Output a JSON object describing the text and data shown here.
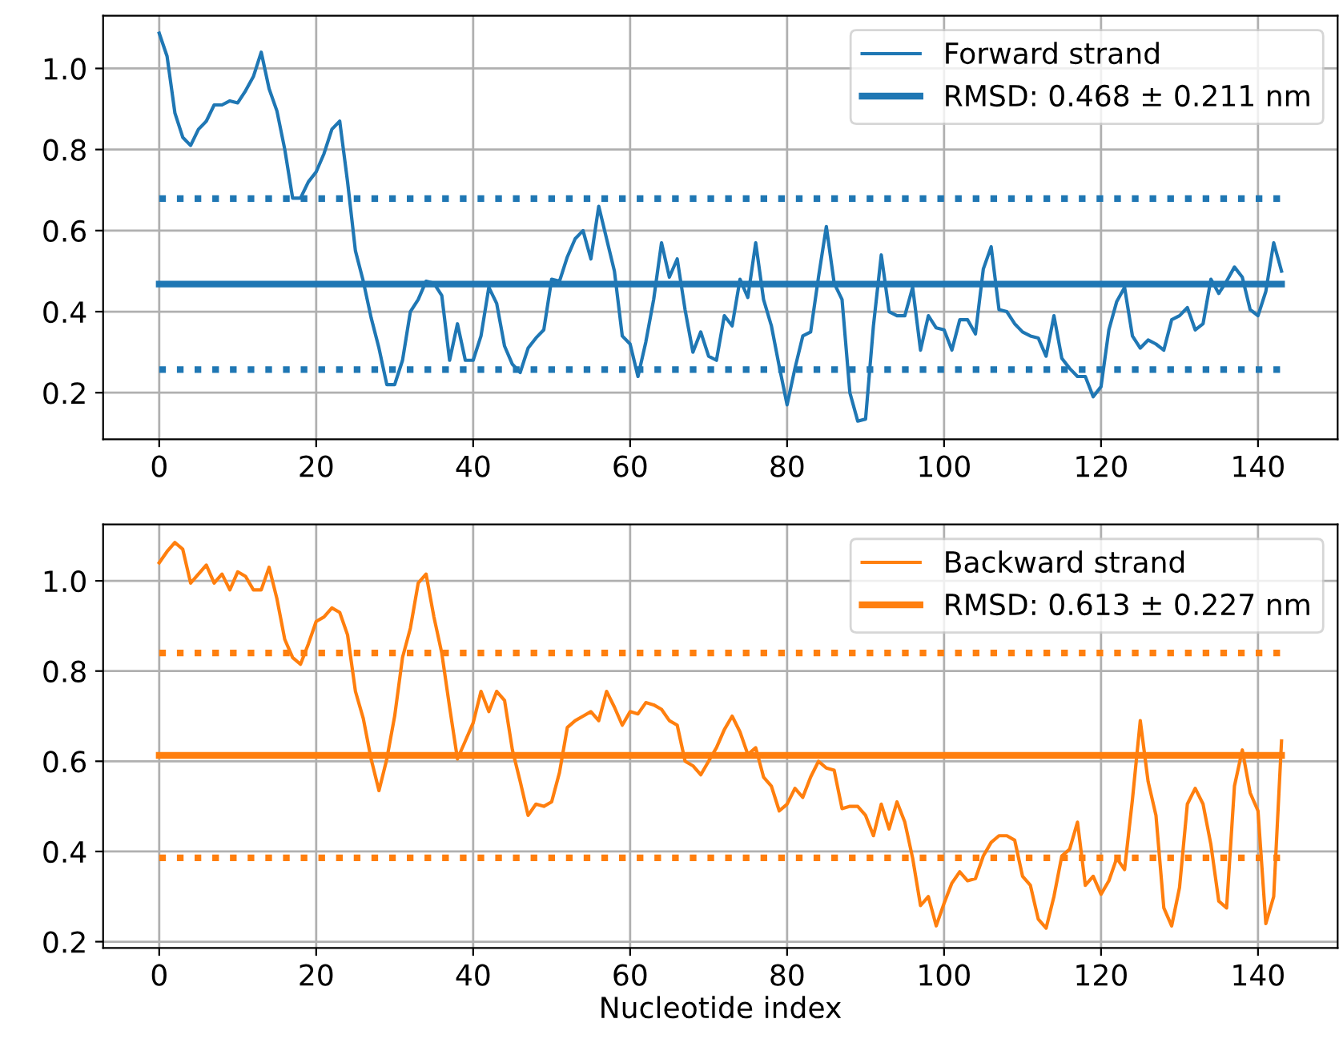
{
  "chart_data": [
    {
      "type": "line",
      "x": [
        0,
        1,
        2,
        3,
        4,
        5,
        6,
        7,
        8,
        9,
        10,
        11,
        12,
        13,
        14,
        15,
        16,
        17,
        18,
        19,
        20,
        21,
        22,
        23,
        24,
        25,
        26,
        27,
        28,
        29,
        30,
        31,
        32,
        33,
        34,
        35,
        36,
        37,
        38,
        39,
        40,
        41,
        42,
        43,
        44,
        45,
        46,
        47,
        48,
        49,
        50,
        51,
        52,
        53,
        54,
        55,
        56,
        57,
        58,
        59,
        60,
        61,
        62,
        63,
        64,
        65,
        66,
        67,
        68,
        69,
        70,
        71,
        72,
        73,
        74,
        75,
        76,
        77,
        78,
        79,
        80,
        81,
        82,
        83,
        84,
        85,
        86,
        87,
        88,
        89,
        90,
        91,
        92,
        93,
        94,
        95,
        96,
        97,
        98,
        99,
        100,
        101,
        102,
        103,
        104,
        105,
        106,
        107,
        108,
        109,
        110,
        111,
        112,
        113,
        114,
        115,
        116,
        117,
        118,
        119,
        120,
        121,
        122,
        123,
        124,
        125,
        126,
        127,
        128,
        129,
        130,
        131,
        132,
        133,
        134,
        135,
        136,
        137,
        138,
        139,
        140,
        141,
        142,
        143
      ],
      "series": [
        {
          "name": "Forward strand",
          "color": "#1f77b4",
          "values": [
            1.087,
            1.03,
            0.89,
            0.83,
            0.81,
            0.85,
            0.87,
            0.91,
            0.91,
            0.92,
            0.915,
            0.945,
            0.98,
            1.04,
            0.95,
            0.895,
            0.8,
            0.68,
            0.68,
            0.72,
            0.745,
            0.79,
            0.85,
            0.87,
            0.72,
            0.55,
            0.475,
            0.385,
            0.31,
            0.22,
            0.22,
            0.28,
            0.4,
            0.43,
            0.475,
            0.47,
            0.44,
            0.28,
            0.37,
            0.28,
            0.28,
            0.34,
            0.46,
            0.42,
            0.315,
            0.27,
            0.25,
            0.31,
            0.335,
            0.355,
            0.48,
            0.475,
            0.535,
            0.58,
            0.6,
            0.53,
            0.66,
            0.58,
            0.5,
            0.34,
            0.32,
            0.24,
            0.325,
            0.43,
            0.57,
            0.485,
            0.53,
            0.405,
            0.3,
            0.35,
            0.29,
            0.28,
            0.39,
            0.365,
            0.48,
            0.435,
            0.57,
            0.43,
            0.365,
            0.265,
            0.17,
            0.26,
            0.34,
            0.35,
            0.485,
            0.61,
            0.47,
            0.43,
            0.2,
            0.13,
            0.135,
            0.365,
            0.54,
            0.4,
            0.39,
            0.39,
            0.46,
            0.305,
            0.39,
            0.36,
            0.355,
            0.305,
            0.38,
            0.38,
            0.345,
            0.505,
            0.56,
            0.405,
            0.4,
            0.37,
            0.35,
            0.34,
            0.335,
            0.29,
            0.39,
            0.285,
            0.26,
            0.24,
            0.24,
            0.19,
            0.215,
            0.355,
            0.425,
            0.46,
            0.34,
            0.31,
            0.33,
            0.32,
            0.305,
            0.38,
            0.39,
            0.41,
            0.355,
            0.37,
            0.48,
            0.445,
            0.475,
            0.51,
            0.485,
            0.405,
            0.39,
            0.45,
            0.57,
            0.5
          ]
        }
      ],
      "ref_lines": [
        {
          "axis": "y",
          "value": 0.468,
          "label": "RMSD: 0.468 ± 0.211 nm",
          "color": "#1f77b4",
          "line_style": "solid"
        },
        {
          "axis": "y",
          "value": 0.679,
          "color": "#1f77b4",
          "line_style": "dotted"
        },
        {
          "axis": "y",
          "value": 0.257,
          "color": "#1f77b4",
          "line_style": "dotted"
        }
      ],
      "xlim": [
        -7.15,
        150.15
      ],
      "ylim": [
        0.085,
        1.13
      ],
      "xticks": [
        0,
        20,
        40,
        60,
        80,
        100,
        120,
        140
      ],
      "yticks": [
        0.2,
        0.4,
        0.6,
        0.8,
        {
          "value": 1,
          "label": "1.0"
        }
      ],
      "grid": true,
      "legend": "top right",
      "marker": "none",
      "line_style": "solid"
    },
    {
      "type": "line",
      "xlabel": "Nucleotide index",
      "x": [
        0,
        1,
        2,
        3,
        4,
        5,
        6,
        7,
        8,
        9,
        10,
        11,
        12,
        13,
        14,
        15,
        16,
        17,
        18,
        19,
        20,
        21,
        22,
        23,
        24,
        25,
        26,
        27,
        28,
        29,
        30,
        31,
        32,
        33,
        34,
        35,
        36,
        37,
        38,
        39,
        40,
        41,
        42,
        43,
        44,
        45,
        46,
        47,
        48,
        49,
        50,
        51,
        52,
        53,
        54,
        55,
        56,
        57,
        58,
        59,
        60,
        61,
        62,
        63,
        64,
        65,
        66,
        67,
        68,
        69,
        70,
        71,
        72,
        73,
        74,
        75,
        76,
        77,
        78,
        79,
        80,
        81,
        82,
        83,
        84,
        85,
        86,
        87,
        88,
        89,
        90,
        91,
        92,
        93,
        94,
        95,
        96,
        97,
        98,
        99,
        100,
        101,
        102,
        103,
        104,
        105,
        106,
        107,
        108,
        109,
        110,
        111,
        112,
        113,
        114,
        115,
        116,
        117,
        118,
        119,
        120,
        121,
        122,
        123,
        124,
        125,
        126,
        127,
        128,
        129,
        130,
        131,
        132,
        133,
        134,
        135,
        136,
        137,
        138,
        139,
        140,
        141,
        142,
        143
      ],
      "series": [
        {
          "name": "Backward strand",
          "color": "#ff7f0e",
          "values": [
            1.04,
            1.065,
            1.085,
            1.07,
            0.995,
            1.015,
            1.035,
            0.995,
            1.015,
            0.98,
            1.02,
            1.01,
            0.98,
            0.98,
            1.03,
            0.96,
            0.87,
            0.83,
            0.815,
            0.86,
            0.91,
            0.92,
            0.94,
            0.93,
            0.88,
            0.755,
            0.695,
            0.605,
            0.535,
            0.605,
            0.7,
            0.83,
            0.895,
            0.995,
            1.015,
            0.92,
            0.84,
            0.72,
            0.605,
            0.645,
            0.685,
            0.755,
            0.71,
            0.755,
            0.735,
            0.625,
            0.555,
            0.48,
            0.505,
            0.5,
            0.51,
            0.575,
            0.675,
            0.69,
            0.7,
            0.71,
            0.69,
            0.755,
            0.72,
            0.68,
            0.71,
            0.705,
            0.73,
            0.725,
            0.715,
            0.69,
            0.68,
            0.6,
            0.59,
            0.57,
            0.6,
            0.63,
            0.67,
            0.7,
            0.665,
            0.615,
            0.63,
            0.565,
            0.545,
            0.49,
            0.505,
            0.54,
            0.52,
            0.565,
            0.6,
            0.585,
            0.58,
            0.495,
            0.5,
            0.5,
            0.48,
            0.435,
            0.505,
            0.45,
            0.51,
            0.465,
            0.385,
            0.28,
            0.3,
            0.235,
            0.285,
            0.33,
            0.355,
            0.335,
            0.34,
            0.39,
            0.42,
            0.435,
            0.435,
            0.425,
            0.345,
            0.325,
            0.25,
            0.23,
            0.3,
            0.39,
            0.405,
            0.465,
            0.325,
            0.345,
            0.305,
            0.335,
            0.385,
            0.36,
            0.515,
            0.69,
            0.555,
            0.48,
            0.275,
            0.235,
            0.32,
            0.505,
            0.54,
            0.505,
            0.415,
            0.29,
            0.275,
            0.545,
            0.625,
            0.53,
            0.49,
            0.24,
            0.3,
            0.645
          ]
        }
      ],
      "ref_lines": [
        {
          "axis": "y",
          "value": 0.613,
          "label": "RMSD: 0.613 ± 0.227 nm",
          "color": "#ff7f0e",
          "line_style": "solid"
        },
        {
          "axis": "y",
          "value": 0.84,
          "color": "#ff7f0e",
          "line_style": "dotted"
        },
        {
          "axis": "y",
          "value": 0.386,
          "color": "#ff7f0e",
          "line_style": "dotted"
        }
      ],
      "xlim": [
        -7.15,
        150.15
      ],
      "ylim": [
        0.186,
        1.125
      ],
      "xticks": [
        0,
        20,
        40,
        60,
        80,
        100,
        120,
        140
      ],
      "yticks": [
        0.2,
        0.4,
        0.6,
        0.8,
        {
          "value": 1,
          "label": "1.0"
        }
      ],
      "grid": true,
      "legend": "top right",
      "marker": "none",
      "line_style": "solid"
    }
  ]
}
